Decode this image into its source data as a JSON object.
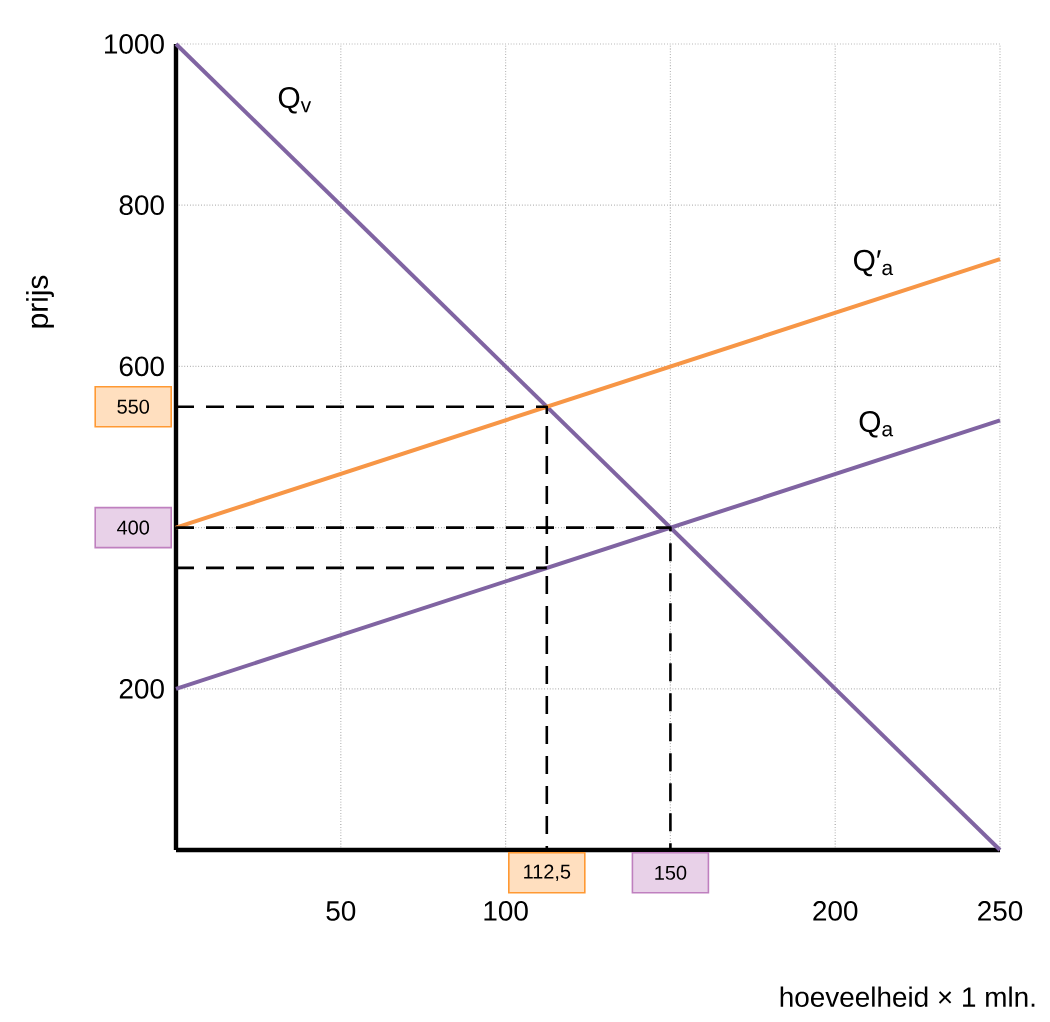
{
  "chart_data": {
    "type": "line",
    "xlabel": "hoeveelheid × 1 mln.",
    "ylabel": "prijs",
    "xlim": [
      0,
      250
    ],
    "ylim": [
      0,
      1000
    ],
    "xticks": [
      50,
      100,
      {
        "value": 150,
        "label": null
      },
      200,
      250
    ],
    "yticks": [
      200,
      {
        "value": 400,
        "label": null
      },
      600,
      800,
      1000
    ],
    "grid": true,
    "marker": "none",
    "series": [
      {
        "name": "Q$_{v}$",
        "color": "#8064a2",
        "x": [
          0,
          250
        ],
        "values": [
          1000,
          0
        ]
      },
      {
        "name": "Q′$_{a}$",
        "color": "#f79646",
        "x": [
          0,
          250
        ],
        "values": [
          400,
          733
        ]
      },
      {
        "name": "Q$_{a}$",
        "color": "#8064a2",
        "x": [
          0,
          250
        ],
        "values": [
          200,
          533
        ]
      },
      {
        "color": "#000000",
        "line_style": "dashed",
        "x": [
          0,
          112.5,
          112.5
        ],
        "values": [
          550,
          550,
          0
        ]
      },
      {
        "color": "#000000",
        "line_style": "dashed",
        "x": [
          0,
          150,
          150
        ],
        "values": [
          400,
          400,
          0
        ]
      },
      {
        "color": "#000000",
        "line_style": "dashed",
        "x": [
          0,
          112.5
        ],
        "values": [
          350,
          350
        ]
      }
    ],
    "annotations": [
      {
        "text": "550",
        "x": 0,
        "y": 550
      },
      {
        "text": "400",
        "x": 0,
        "y": 400
      },
      {
        "text": "112,5",
        "x": 112.5,
        "y": 0
      },
      {
        "text": "150",
        "x": 150,
        "y": 0
      }
    ]
  }
}
